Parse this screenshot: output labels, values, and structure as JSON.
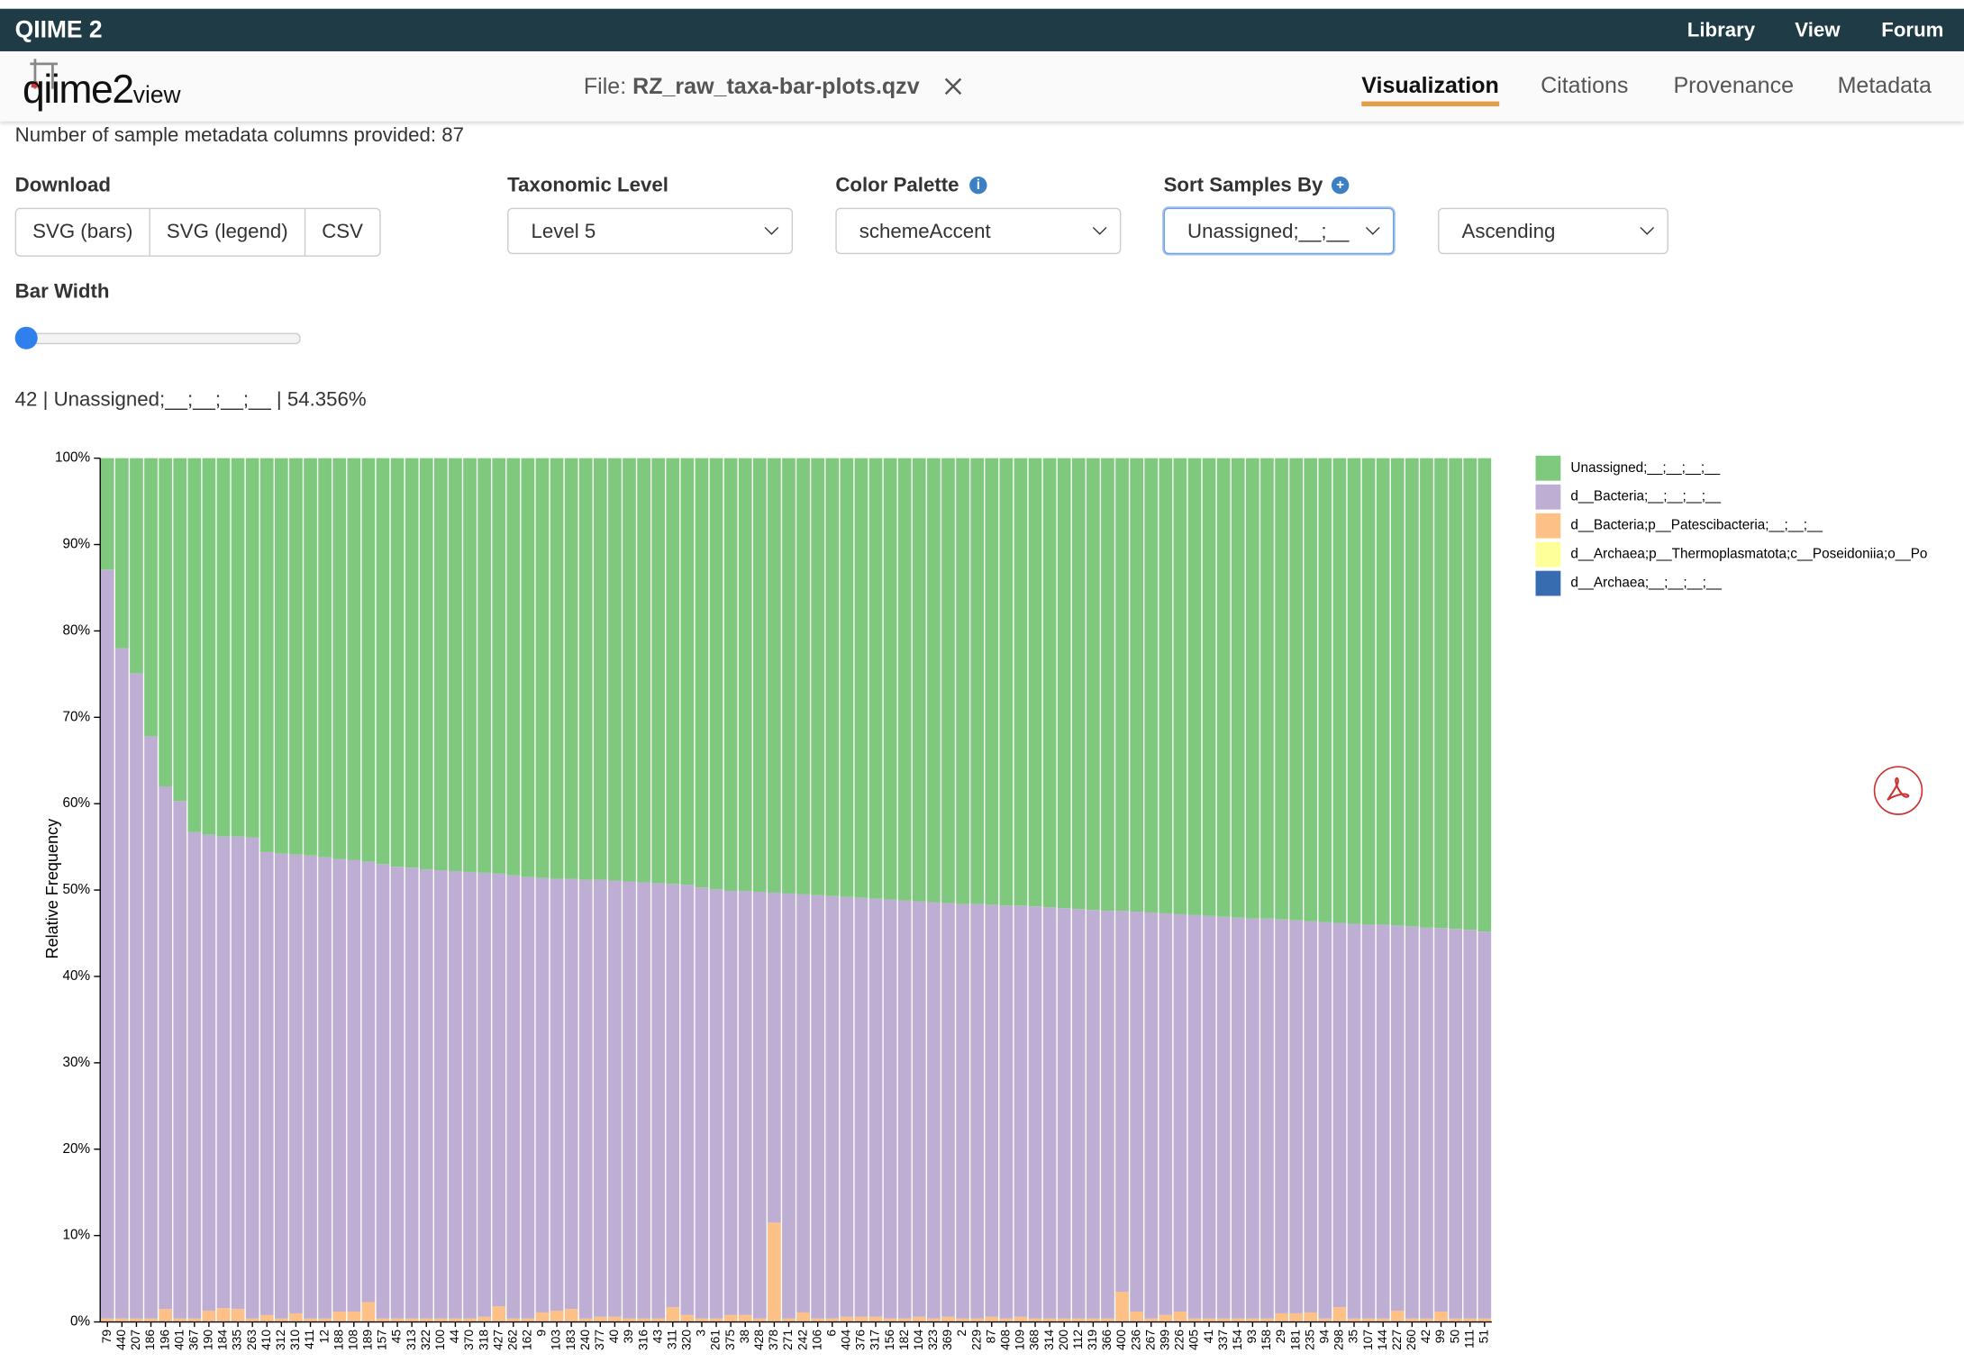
{
  "navbar": {
    "brand": "QIIME 2",
    "links": [
      "Library",
      "View",
      "Forum"
    ]
  },
  "header": {
    "logo_main": "qiime2",
    "logo_sub": "view",
    "file_label": "File:",
    "file_name": "RZ_raw_taxa-bar-plots.qzv",
    "tabs": [
      "Visualization",
      "Citations",
      "Provenance",
      "Metadata"
    ]
  },
  "metadata_note": "Number of sample metadata columns provided: 87",
  "controls": {
    "download": {
      "label": "Download",
      "buttons": [
        "SVG (bars)",
        "SVG (legend)",
        "CSV"
      ]
    },
    "taxonomic_level": {
      "label": "Taxonomic Level",
      "value": "Level 5"
    },
    "color_palette": {
      "label": "Color Palette",
      "value": "schemeAccent"
    },
    "sort": {
      "label": "Sort Samples By",
      "value": "Unassigned;__;__",
      "order": "Ascending"
    },
    "bar_width": {
      "label": "Bar Width"
    }
  },
  "hover_info": "42 | Unassigned;__;__;__;__ | 54.356%",
  "chart_data": {
    "type": "stacked_bar",
    "ylabel": "Relative Frequency",
    "ylim": [
      0,
      100
    ],
    "yticks": [
      {
        "value": 0,
        "label": "0%"
      },
      {
        "value": 10,
        "label": "10%"
      },
      {
        "value": 20,
        "label": "20%"
      },
      {
        "value": 30,
        "label": "30%"
      },
      {
        "value": 40,
        "label": "40%"
      },
      {
        "value": 50,
        "label": "50%"
      },
      {
        "value": 60,
        "label": "60%"
      },
      {
        "value": 70,
        "label": "70%"
      },
      {
        "value": 80,
        "label": "80%"
      },
      {
        "value": 90,
        "label": "90%"
      },
      {
        "value": 100,
        "label": "100%"
      }
    ],
    "legend": "right",
    "categories": [
      "79",
      "440",
      "207",
      "186",
      "196",
      "401",
      "367",
      "190",
      "184",
      "335",
      "263",
      "410",
      "312",
      "310",
      "411",
      "12",
      "188",
      "108",
      "189",
      "157",
      "45",
      "313",
      "322",
      "100",
      "44",
      "370",
      "318",
      "427",
      "262",
      "162",
      "9",
      "103",
      "183",
      "240",
      "377",
      "40",
      "39",
      "316",
      "43",
      "311",
      "320",
      "3",
      "261",
      "375",
      "38",
      "428",
      "378",
      "271",
      "242",
      "106",
      "6",
      "404",
      "376",
      "317",
      "156",
      "182",
      "104",
      "323",
      "369",
      "2",
      "229",
      "87",
      "408",
      "109",
      "368",
      "314",
      "200",
      "112",
      "319",
      "366",
      "400",
      "236",
      "267",
      "399",
      "226",
      "405",
      "41",
      "337",
      "154",
      "93",
      "158",
      "29",
      "181",
      "235",
      "94",
      "298",
      "35",
      "107",
      "144",
      "227",
      "260",
      "42",
      "99",
      "50",
      "111",
      "51"
    ],
    "series": [
      {
        "name": "Unassigned;__;__;__;__",
        "color": "#7fc97f",
        "values": [
          12.9,
          22.0,
          24.9,
          32.2,
          38.0,
          39.7,
          43.3,
          43.6,
          43.8,
          43.8,
          43.9,
          45.6,
          45.8,
          45.9,
          46.0,
          46.2,
          46.4,
          46.5,
          46.7,
          47.0,
          47.3,
          47.4,
          47.6,
          47.7,
          47.8,
          47.9,
          48.0,
          48.1,
          48.3,
          48.5,
          48.6,
          48.7,
          48.7,
          48.8,
          48.8,
          48.9,
          49.0,
          49.1,
          49.2,
          49.3,
          49.4,
          49.7,
          49.9,
          50.1,
          50.1,
          50.2,
          50.3,
          50.4,
          50.5,
          50.6,
          50.7,
          50.8,
          50.9,
          51.0,
          51.1,
          51.2,
          51.3,
          51.4,
          51.5,
          51.6,
          51.6,
          51.7,
          51.8,
          51.8,
          51.9,
          52.0,
          52.1,
          52.2,
          52.3,
          52.4,
          52.4,
          52.5,
          52.6,
          52.7,
          52.8,
          52.9,
          53.0,
          53.1,
          53.2,
          53.3,
          53.3,
          53.4,
          53.5,
          53.6,
          53.7,
          53.8,
          53.9,
          54.0,
          54.0,
          54.1,
          54.2,
          54.356,
          54.4,
          54.5,
          54.6,
          54.8
        ]
      },
      {
        "name": "d__Bacteria;__;__;__;__",
        "color": "#beaed4",
        "values": [
          86.7,
          77.6,
          74.7,
          67.4,
          60.5,
          59.9,
          56.3,
          55.1,
          54.6,
          54.7,
          55.7,
          53.6,
          53.8,
          53.1,
          53.6,
          53.4,
          52.4,
          52.3,
          51.0,
          52.6,
          52.3,
          52.2,
          52.0,
          51.9,
          51.8,
          51.7,
          51.4,
          50.1,
          51.3,
          51.1,
          50.3,
          50.0,
          49.8,
          50.8,
          50.6,
          50.5,
          50.6,
          50.5,
          50.4,
          49.0,
          49.8,
          49.9,
          49.7,
          49.1,
          49.1,
          49.4,
          38.2,
          49.2,
          48.4,
          49.0,
          48.9,
          48.6,
          48.5,
          48.4,
          48.5,
          48.4,
          48.1,
          48.2,
          47.9,
          48.0,
          48.0,
          47.7,
          47.8,
          47.6,
          47.7,
          47.6,
          47.5,
          47.4,
          47.3,
          47.2,
          44.1,
          46.3,
          47.0,
          46.5,
          46.0,
          46.7,
          46.6,
          46.5,
          46.4,
          46.3,
          46.3,
          45.6,
          45.5,
          45.3,
          45.9,
          44.5,
          45.7,
          45.6,
          45.6,
          44.6,
          45.4,
          45.244,
          44.4,
          45.1,
          45.0,
          44.8
        ]
      },
      {
        "name": "d__Bacteria;p__Patescibacteria;__;__;__",
        "color": "#fdc086",
        "values": [
          0.4,
          0.4,
          0.4,
          0.4,
          1.5,
          0.4,
          0.4,
          1.3,
          1.6,
          1.5,
          0.4,
          0.8,
          0.4,
          1.0,
          0.4,
          0.4,
          1.2,
          1.2,
          2.3,
          0.4,
          0.4,
          0.4,
          0.4,
          0.4,
          0.4,
          0.4,
          0.6,
          1.8,
          0.4,
          0.4,
          1.1,
          1.3,
          1.5,
          0.4,
          0.6,
          0.6,
          0.4,
          0.4,
          0.4,
          1.7,
          0.8,
          0.4,
          0.4,
          0.8,
          0.8,
          0.4,
          11.5,
          0.4,
          1.1,
          0.4,
          0.4,
          0.6,
          0.6,
          0.6,
          0.4,
          0.4,
          0.6,
          0.4,
          0.6,
          0.4,
          0.4,
          0.6,
          0.4,
          0.6,
          0.4,
          0.4,
          0.4,
          0.4,
          0.4,
          0.4,
          3.5,
          1.2,
          0.4,
          0.8,
          1.2,
          0.4,
          0.4,
          0.4,
          0.4,
          0.4,
          0.4,
          1.0,
          1.0,
          1.1,
          0.4,
          1.7,
          0.4,
          0.4,
          0.4,
          1.3,
          0.4,
          0.4,
          1.2,
          0.4,
          0.4,
          0.4
        ]
      },
      {
        "name": "d__Archaea;p__Thermoplasmatota;c__Poseidoniia;o__Po",
        "color": "#ffff99",
        "values": [
          0,
          0,
          0,
          0,
          0,
          0,
          0,
          0,
          0,
          0,
          0,
          0,
          0,
          0,
          0,
          0,
          0,
          0,
          0,
          0,
          0,
          0,
          0,
          0,
          0,
          0,
          0,
          0,
          0,
          0,
          0,
          0,
          0,
          0,
          0,
          0,
          0,
          0,
          0,
          0,
          0,
          0,
          0,
          0,
          0,
          0,
          0,
          0,
          0,
          0,
          0,
          0,
          0,
          0,
          0,
          0,
          0,
          0,
          0,
          0,
          0,
          0,
          0,
          0,
          0,
          0,
          0,
          0,
          0,
          0,
          0,
          0,
          0,
          0,
          0,
          0,
          0,
          0,
          0,
          0,
          0,
          0,
          0,
          0,
          0,
          0,
          0,
          0,
          0,
          0,
          0,
          0,
          0,
          0,
          0,
          0
        ]
      },
      {
        "name": "d__Archaea;__;__;__;__",
        "color": "#386cb0",
        "values": [
          0,
          0,
          0,
          0,
          0,
          0,
          0,
          0,
          0,
          0,
          0,
          0,
          0,
          0,
          0,
          0,
          0,
          0,
          0,
          0,
          0,
          0,
          0,
          0,
          0,
          0,
          0,
          0,
          0,
          0,
          0,
          0,
          0,
          0,
          0,
          0,
          0,
          0,
          0,
          0,
          0,
          0,
          0,
          0,
          0,
          0,
          0,
          0,
          0,
          0,
          0,
          0,
          0,
          0,
          0,
          0,
          0,
          0,
          0,
          0,
          0,
          0,
          0,
          0,
          0,
          0,
          0,
          0,
          0,
          0,
          0,
          0,
          0,
          0,
          0,
          0,
          0,
          0,
          0,
          0,
          0,
          0,
          0,
          0,
          0,
          0,
          0,
          0,
          0,
          0,
          0,
          0,
          0,
          0,
          0,
          0
        ]
      }
    ]
  }
}
